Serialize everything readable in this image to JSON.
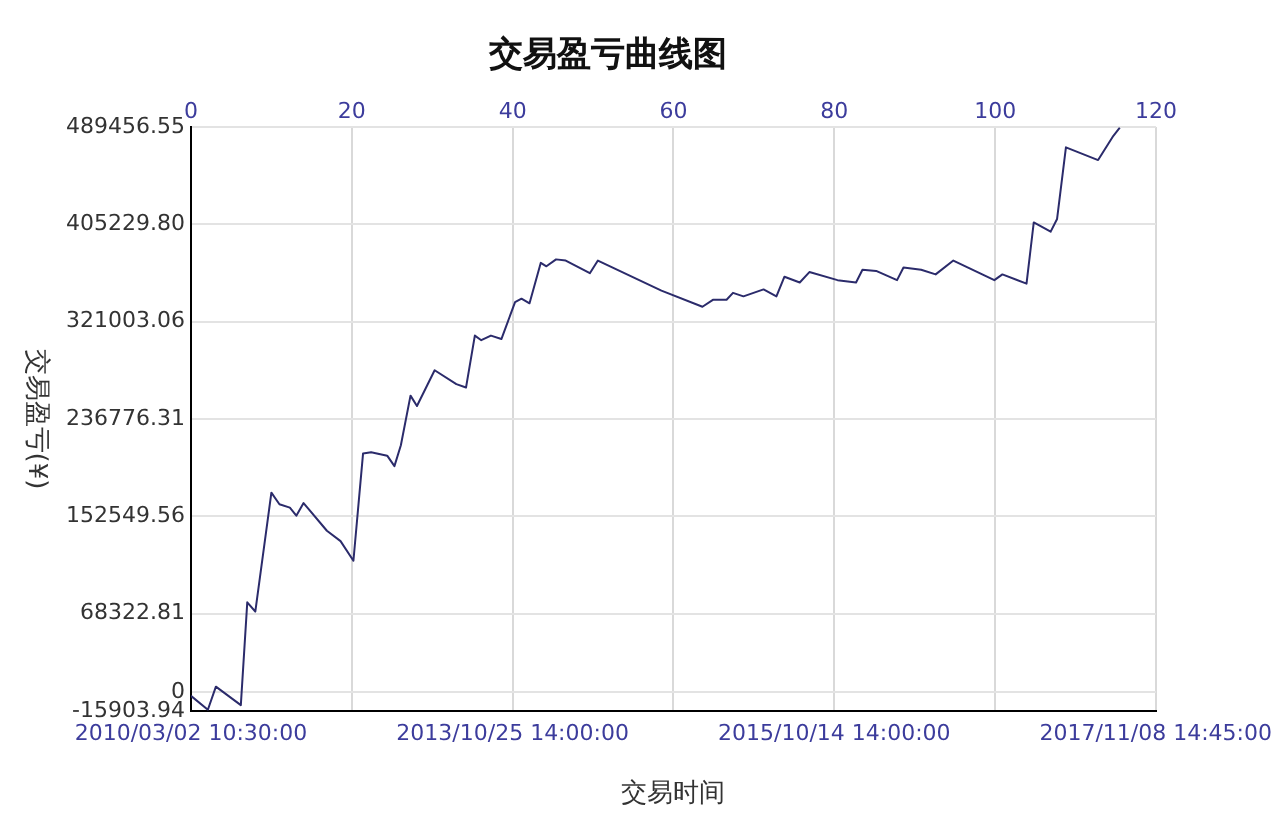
{
  "chart_data": {
    "type": "line",
    "title": "交易盈亏曲线图",
    "xlabel": "交易时间",
    "ylabel": "交易盈亏(¥)",
    "x": [
      0,
      2.1,
      3.1,
      6.2,
      7,
      8,
      10,
      11,
      12.3,
      13.1,
      14,
      16.9,
      18.6,
      20.2,
      21.4,
      22.4,
      24.4,
      25.3,
      26.1,
      27.3,
      28.1,
      30.3,
      33,
      34.2,
      35.3,
      36.1,
      37.3,
      38.6,
      40.3,
      41.1,
      42.1,
      43.5,
      44.2,
      45.4,
      46.6,
      49.6,
      50.6,
      58.5,
      63.6,
      64.9,
      66.6,
      67.4,
      68.7,
      71.2,
      72.8,
      73.8,
      75.7,
      76.9,
      80.4,
      82.7,
      83.5,
      85.2,
      87.8,
      88.6,
      90.8,
      92.6,
      94.8,
      99.9,
      100.9,
      103.9,
      104.8,
      106.9,
      107.7,
      108.8,
      112.8,
      114.7,
      115.5
    ],
    "series": [
      {
        "color": "#2b2b6b",
        "values": [
          -3000,
          -15000,
          5000,
          -11000,
          78000,
          70000,
          173000,
          163000,
          160000,
          153000,
          164000,
          140000,
          131000,
          114000,
          207000,
          208000,
          205000,
          196000,
          214000,
          257000,
          248000,
          279000,
          267000,
          264000,
          309000,
          305000,
          309000,
          306000,
          338000,
          341000,
          337000,
          372000,
          369000,
          375000,
          374000,
          363000,
          374000,
          348000,
          334000,
          340000,
          340000,
          346000,
          343000,
          349000,
          343000,
          360000,
          355000,
          364000,
          357000,
          355000,
          366000,
          365000,
          357000,
          368000,
          366000,
          362000,
          374000,
          357000,
          362000,
          354000,
          407000,
          399000,
          410000,
          472000,
          461000,
          482000,
          489000
        ]
      }
    ],
    "xlim": [
      0,
      120
    ],
    "xticks": [
      0,
      20,
      40,
      60,
      80,
      100,
      120
    ],
    "annotations": [
      "2010/03/02 10:30:00",
      "2013/10/25 14:00:00",
      "2015/10/14 14:00:00",
      "2017/11/08 14:45:00"
    ],
    "ylim": [
      -15903.94,
      489456.55
    ],
    "yticks": [
      -15903.94,
      0,
      68322.81,
      152549.56,
      236776.31,
      321003.06,
      {
        "value": 405229.8,
        "label": "405229.80"
      },
      489456.55
    ],
    "grid": true,
    "legend": false,
    "marker": "none",
    "line_style": "solid"
  }
}
